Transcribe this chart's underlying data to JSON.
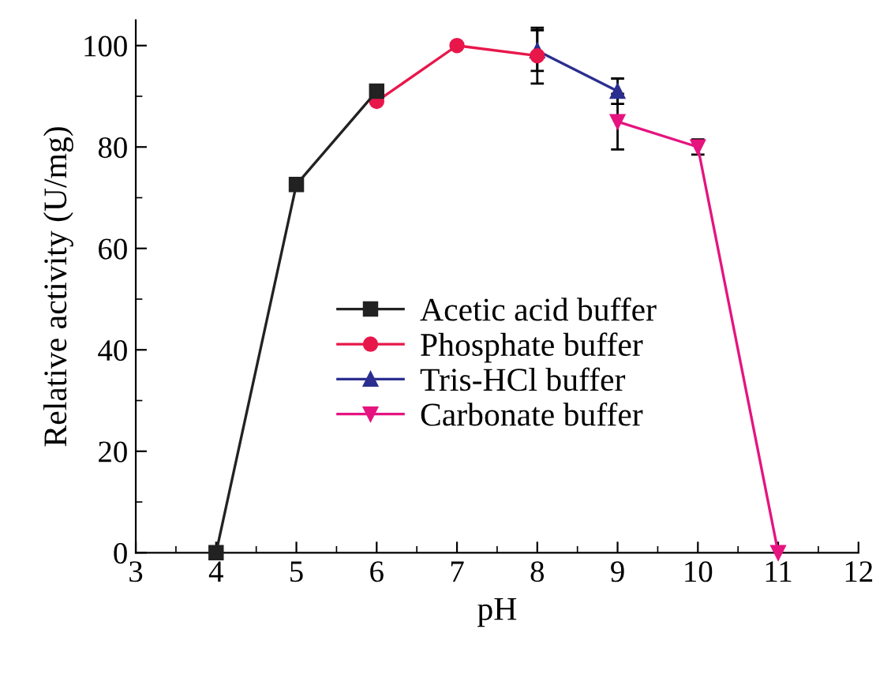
{
  "chart_data": {
    "type": "line",
    "xlabel": "pH",
    "ylabel": "Relative activity (U/mg)",
    "xlim": [
      3,
      12
    ],
    "xticks": [
      3,
      4,
      5,
      6,
      7,
      8,
      9,
      10,
      11,
      12
    ],
    "ylim": [
      0,
      105
    ],
    "yticks": [
      0,
      20,
      40,
      60,
      80,
      100
    ],
    "grid": false,
    "legend": "bottom",
    "line_style": "solid",
    "series": [
      {
        "name": "Acetic acid buffer",
        "color": "#222222",
        "marker": "square",
        "x": [
          4,
          5,
          6
        ],
        "values": [
          0,
          72.6,
          91
        ]
      },
      {
        "name": "Phosphate buffer",
        "color": "#e8174a",
        "marker": "circle",
        "x": [
          6,
          7,
          8
        ],
        "values": [
          89,
          100,
          98
        ],
        "errors": [
          null,
          null,
          5.5
        ]
      },
      {
        "name": "Tris-HCl buffer",
        "color": "#2b2e8f",
        "marker": "triangle",
        "x": [
          8,
          9
        ],
        "values": [
          99,
          91
        ],
        "errors": [
          4,
          2.5
        ]
      },
      {
        "name": "Carbonate buffer",
        "color": "#e5147f",
        "marker": "triangle_down",
        "x": [
          9,
          10,
          11
        ],
        "values": [
          85,
          80,
          0
        ],
        "errors": [
          5.5,
          1.5,
          null
        ]
      }
    ]
  }
}
